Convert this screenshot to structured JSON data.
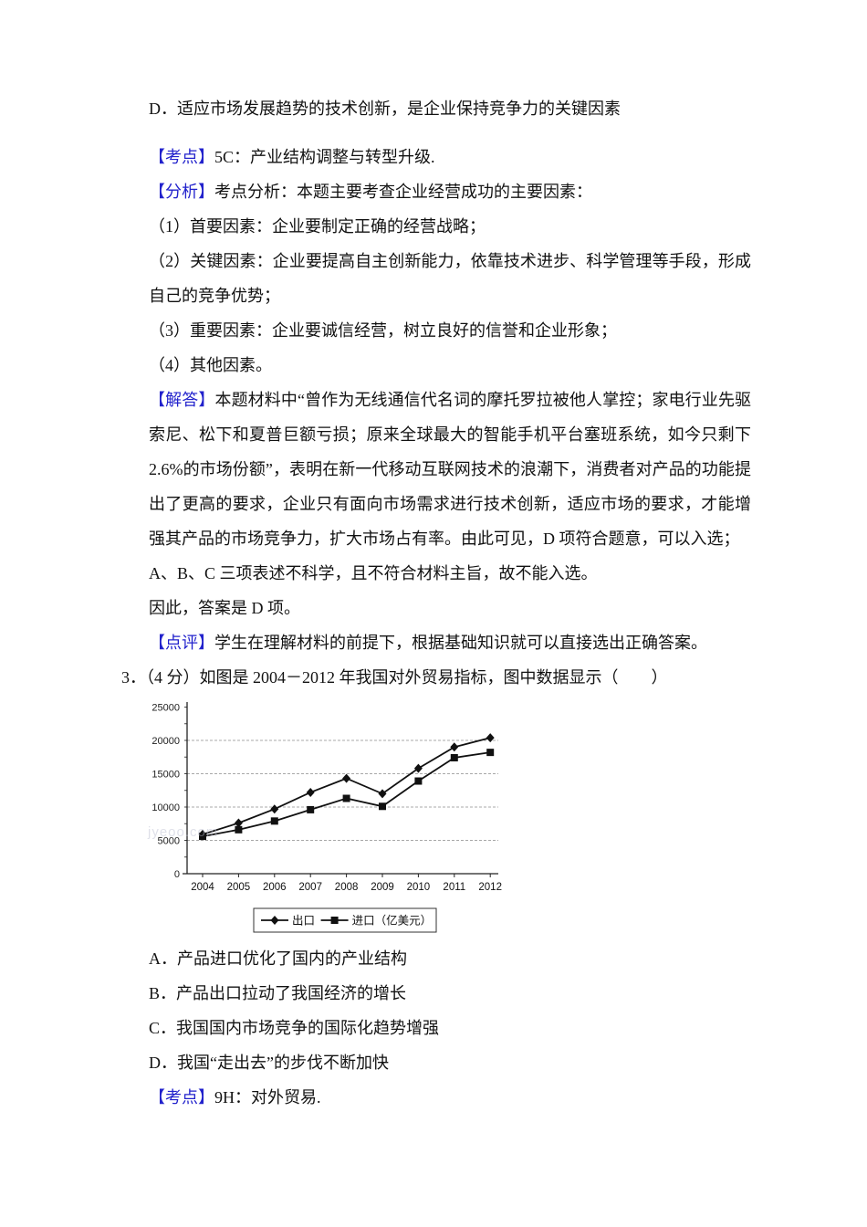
{
  "page": {
    "background": "#ffffff",
    "text_color": "#121212",
    "label_color": "#2222cc"
  },
  "body": {
    "paragraphs": [
      {
        "label": "",
        "text": "D．适应市场发展趋势的技术创新，是企业保持竞争力的关键因素"
      },
      {
        "label": "【考点】",
        "text": "5C：产业结构调整与转型升级."
      },
      {
        "label": "【分析】",
        "text": "考点分析：本题主要考查企业经营成功的主要因素："
      },
      {
        "label": "",
        "text": "（1）首要因素：企业要制定正确的经营战略；"
      },
      {
        "label": "",
        "text": "（2）关键因素：企业要提高自主创新能力，依靠技术进步、科学管理等手段，形成自己的竞争优势；"
      },
      {
        "label": "",
        "text": "（3）重要因素：企业要诚信经营，树立良好的信誉和企业形象；"
      },
      {
        "label": "",
        "text": "（4）其他因素。"
      },
      {
        "label": "【解答】",
        "text": "本题材料中“曾作为无线通信代名词的摩托罗拉被他人掌控；家电行业先驱索尼、松下和夏普巨额亏损；原来全球最大的智能手机平台塞班系统，如今只剩下 2.6%的市场份额”，表明在新一代移动互联网技术的浪潮下，消费者对产品的功能提出了更高的要求，企业只有面向市场需求进行技术创新，适应市场的要求，才能增强其产品的市场竞争力，扩大市场占有率。由此可见，D 项符合题意，可以入选；"
      },
      {
        "label": "",
        "text": "A、B、C 三项表述不科学，且不符合材料主旨，故不能入选。"
      },
      {
        "label": "",
        "text": "因此，答案是 D 项。"
      },
      {
        "label": "【点评】",
        "text": "学生在理解材料的前提下，根据基础知识就可以直接选出正确答案。"
      }
    ],
    "question3": {
      "text": "3．（4 分）如图是 2004－2012 年我国对外贸易指标，图中数据显示（　　）"
    },
    "options": [
      {
        "key": "A．",
        "text": "产品进口优化了国内的产业结构"
      },
      {
        "key": "B．",
        "text": "产品出口拉动了我国经济的增长"
      },
      {
        "key": "C．",
        "text": "我国国内市场竞争的国际化趋势增强"
      },
      {
        "key": "D．",
        "text": "我国“走出去”的步伐不断加快"
      }
    ],
    "kaodian2": {
      "label": "【考点】",
      "text": "9H：对外贸易."
    }
  },
  "watermark": "jyeoo.com",
  "chart_data": {
    "type": "line",
    "title": "",
    "xlabel": "",
    "ylabel": "",
    "unit": "亿美元",
    "x": [
      2004,
      2005,
      2006,
      2007,
      2008,
      2009,
      2010,
      2011,
      2012
    ],
    "series": [
      {
        "name": "出口",
        "marker": "diamond",
        "values": [
          5900,
          7600,
          9700,
          12200,
          14300,
          12000,
          15800,
          19000,
          20400
        ]
      },
      {
        "name": "进口（亿美元）",
        "marker": "square",
        "values": [
          5600,
          6600,
          7900,
          9600,
          11300,
          10100,
          13900,
          17400,
          18200
        ]
      }
    ],
    "ylim": [
      0,
      25000
    ],
    "yticks": [
      0,
      5000,
      10000,
      15000,
      20000,
      25000
    ],
    "grid": true,
    "legend_position": "bottom"
  }
}
